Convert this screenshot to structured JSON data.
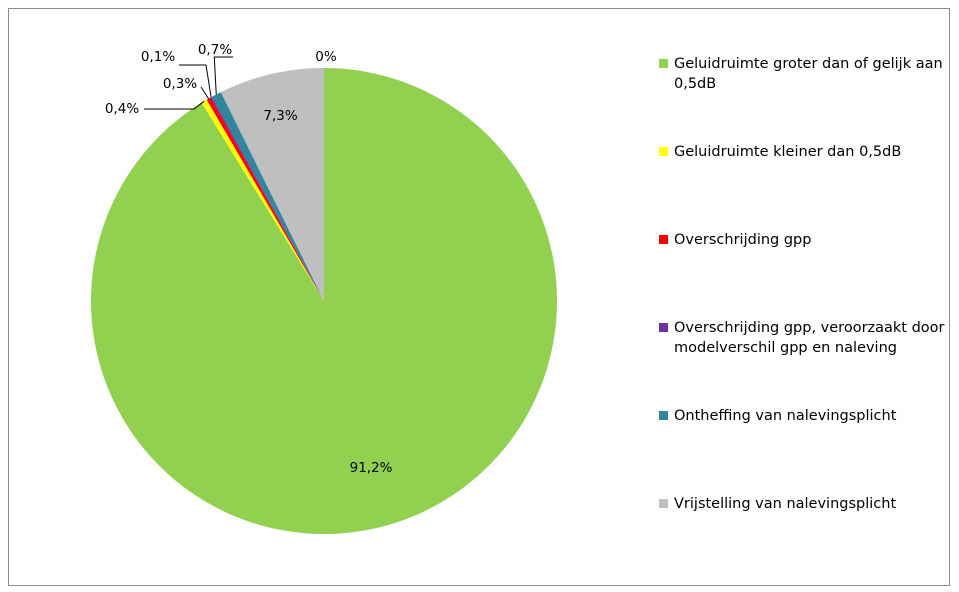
{
  "chart_data": {
    "type": "pie",
    "series": [
      {
        "name": "Geluidruimte groter dan of gelijk aan 0,5dB",
        "value": 91.2,
        "label": "91,2%",
        "color": "#92d050"
      },
      {
        "name": "Geluidruimte kleiner dan 0,5dB",
        "value": 0.4,
        "label": "0,4%",
        "color": "#ffff00"
      },
      {
        "name": "Overschrijding gpp",
        "value": 0.3,
        "label": "0,3%",
        "color": "#ff0000"
      },
      {
        "name": "Overschrijding gpp, veroorzaakt door modelverschil gpp en naleving",
        "value": 0.1,
        "label": "0,1%",
        "color": "#7030a0"
      },
      {
        "name": "Ontheffing van nalevingsplicht",
        "value": 0.7,
        "label": "0,7%",
        "color": "#31859c"
      },
      {
        "name": "Vrijstelling van nalevingsplicht",
        "value": 7.3,
        "label": "7,3%",
        "color": "#bfbfbf"
      }
    ],
    "extra_labels": [
      "0%"
    ],
    "legend_position": "right"
  }
}
